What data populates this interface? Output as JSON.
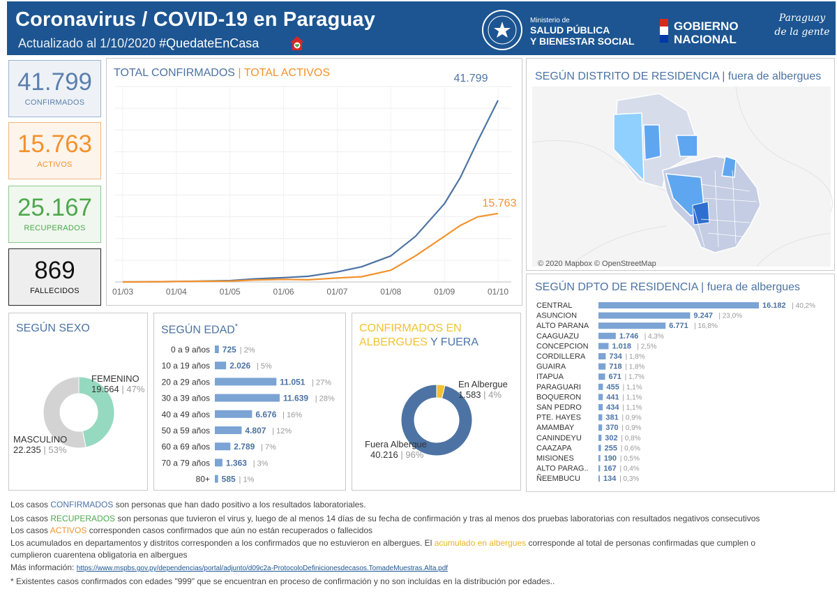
{
  "header": {
    "title": "Coronavirus / COVID-19 en Paraguay",
    "updated": "Actualizado al 1/10/2020",
    "hashtag": "#QuedateEnCasa",
    "ministry_small": "Ministerio de",
    "ministry_line1": "SALUD PÚBLICA",
    "ministry_line2": "Y BIENESTAR SOCIAL",
    "gob_line1": "GOBIERNO",
    "gob_line2": "NACIONAL",
    "slogan_line1": "Paraguay",
    "slogan_line2": "de la gente"
  },
  "kpis": {
    "confirmed_value": "41.799",
    "confirmed_label": "CONFIRMADOS",
    "active_value": "15.763",
    "active_label": "ACTIVOS",
    "recovered_value": "25.167",
    "recovered_label": "RECUPERADOS",
    "deaths_value": "869",
    "deaths_label": "FALLECIDOS"
  },
  "colors": {
    "confirmed": "#4c73a3",
    "active": "#f3922c",
    "recovered": "#4ea84d",
    "albergue": "#f1c232",
    "bar": "#7ba3d4",
    "female": "#96d9c1",
    "male": "#d3d3d3",
    "header": "#1c5591"
  },
  "trend": {
    "title_a": "TOTAL CONFIRMADOS",
    "sep": "|",
    "title_b": "TOTAL ACTIVOS",
    "confirmed_end_label": "41.799",
    "active_end_label": "15.763"
  },
  "map": {
    "title": "SEGÚN DISTRITO DE RESIDENCIA | fuera de albergues",
    "credit": "© 2020 Mapbox © OpenStreetMap"
  },
  "sex": {
    "title": "SEGÚN SEXO",
    "female_label": "FEMENINO",
    "female_value": "19.564",
    "female_pct": "| 47%",
    "male_label": "MASCULINO",
    "male_value": "22.235",
    "male_pct": "| 53%"
  },
  "age": {
    "title": "SEGÚN EDAD",
    "note_mark": "*"
  },
  "shelter": {
    "title_a": "CONFIRMADOS EN",
    "title_b": "ALBERGUES",
    "title_c": "Y FUERA",
    "in_label": "En Albergue",
    "in_value": "1.583",
    "in_pct": "| 4%",
    "out_label": "Fuera Albergue",
    "out_value": "40.216",
    "out_pct": "| 96%"
  },
  "dept": {
    "title": "SEGÚN DPTO DE RESIDENCIA | fuera de albergues"
  },
  "chart_data": [
    {
      "type": "line",
      "title": "TOTAL CONFIRMADOS | TOTAL ACTIVOS",
      "x_ticks": [
        "01/03",
        "01/04",
        "01/05",
        "01/06",
        "01/07",
        "01/08",
        "01/09",
        "01/10"
      ],
      "series": [
        {
          "name": "TOTAL CONFIRMADOS",
          "color": "#4c73a3",
          "x": [
            "01/03",
            "15/03",
            "01/04",
            "15/04",
            "01/05",
            "15/05",
            "01/06",
            "15/06",
            "01/07",
            "15/07",
            "01/08",
            "15/08",
            "01/09",
            "10/09",
            "20/09",
            "01/10"
          ],
          "values": [
            0,
            20,
            100,
            200,
            300,
            700,
            1000,
            1300,
            2300,
            3500,
            6000,
            10500,
            18000,
            24000,
            32500,
            41799
          ]
        },
        {
          "name": "TOTAL ACTIVOS",
          "color": "#f3922c",
          "x": [
            "01/03",
            "15/03",
            "01/04",
            "15/04",
            "01/05",
            "15/05",
            "01/06",
            "15/06",
            "01/07",
            "15/07",
            "01/08",
            "15/08",
            "01/09",
            "10/09",
            "20/09",
            "01/10"
          ],
          "values": [
            0,
            20,
            90,
            150,
            200,
            450,
            600,
            500,
            900,
            1200,
            2700,
            6000,
            10500,
            13000,
            15000,
            15763
          ]
        }
      ],
      "ylim": [
        0,
        45000
      ],
      "grid": true
    },
    {
      "type": "pie",
      "title": "SEGÚN SEXO",
      "labels": [
        "FEMENINO",
        "MASCULINO"
      ],
      "values": [
        19564,
        22235
      ],
      "colors": [
        "#96d9c1",
        "#d3d3d3"
      ]
    },
    {
      "type": "bar",
      "title": "SEGÚN EDAD",
      "orientation": "horizontal",
      "categories": [
        "0 a 9 años",
        "10 a 19 años",
        "20 a 29 años",
        "30 a 39 años",
        "40 a 49 años",
        "50 a 59 años",
        "60 a 69 años",
        "70 a 79 años",
        "80+"
      ],
      "values": [
        725,
        2026,
        11051,
        11639,
        6676,
        4807,
        2789,
        1363,
        585
      ],
      "value_labels": [
        "725",
        "2.026",
        "11.051",
        "11.639",
        "6.676",
        "4.807",
        "2.789",
        "1.363",
        "585"
      ],
      "pct_labels": [
        "| 2%",
        "| 5%",
        "| 27%",
        "| 28%",
        "| 16%",
        "| 12%",
        "| 7%",
        "| 3%",
        "| 1%"
      ]
    },
    {
      "type": "pie",
      "title": "CONFIRMADOS EN ALBERGUES Y FUERA",
      "labels": [
        "En Albergue",
        "Fuera Albergue"
      ],
      "values": [
        1583,
        40216
      ],
      "colors": [
        "#f1c232",
        "#4c73a3"
      ]
    },
    {
      "type": "bar",
      "title": "SEGÚN DPTO DE RESIDENCIA | fuera de albergues",
      "orientation": "horizontal",
      "categories": [
        "CENTRAL",
        "ASUNCION",
        "ALTO PARANA",
        "CAAGUAZU",
        "CONCEPCION",
        "CORDILLERA",
        "GUAIRA",
        "ITAPUA",
        "PARAGUARI",
        "BOQUERON",
        "SAN PEDRO",
        "PTE. HAYES",
        "AMAMBAY",
        "CANINDEYU",
        "CAAZAPA",
        "MISIONES",
        "ALTO PARAG..",
        "ÑEEMBUCU"
      ],
      "values": [
        16182,
        9247,
        6771,
        1746,
        1018,
        734,
        718,
        671,
        455,
        441,
        434,
        381,
        370,
        302,
        255,
        190,
        167,
        134
      ],
      "value_labels": [
        "16.182",
        "9.247",
        "6.771",
        "1.746",
        "1.018",
        "734",
        "718",
        "671",
        "455",
        "441",
        "434",
        "381",
        "370",
        "302",
        "255",
        "190",
        "167",
        "134"
      ],
      "pct_labels": [
        "| 40,2%",
        "| 23,0%",
        "| 16,8%",
        "| 4,3%",
        "| 2,5%",
        "| 1,8%",
        "| 1,8%",
        "| 1,7%",
        "| 1,1%",
        "| 1,1%",
        "| 1,1%",
        "| 0,9%",
        "| 0,9%",
        "| 0,8%",
        "| 0,6%",
        "| 0,5%",
        "| 0,4%",
        "| 0,3%"
      ]
    }
  ],
  "footer": {
    "l1_a": "Los casos",
    "l1_b": "CONFIRMADOS",
    "l1_c": "son personas que han dado positivo a los resultados laboratoriales.",
    "l2_a": "Los casos",
    "l2_b": "RECUPERADOS",
    "l2_c": "son personas que tuvieron el virus y, luego de al menos 14 días de su fecha de confirmación y tras al menos dos pruebas laboratorias con resultados negativos consecutivos",
    "l3_a": "Los casos",
    "l3_b": "ACTIVOS",
    "l3_c": "corresponden casos confirmados que aún no están recuperados o fallecidos",
    "l4_a": "Los acumulados en departamentos y distritos corresponden a los confirmados que no estuvieron en albergues. El",
    "l4_b": "acumulado en albergues",
    "l4_c": "corresponde al total de personas confirmadas que cumplen o",
    "l5": "cumplieron cuarentena obligatoria en albergues",
    "l6_a": "Más información:",
    "l6_link": "https://www.mspbs.gov.py/dependencias/portal/adjunto/d09c2a-ProtocoloDefinicionesdecasos.TomadeMuestras.Alta.pdf",
    "l7": "* Existentes casos confirmados con edades \"999\" que se encuentran en proceso de confirmación y no son incluídas en la distribución por edades.."
  }
}
